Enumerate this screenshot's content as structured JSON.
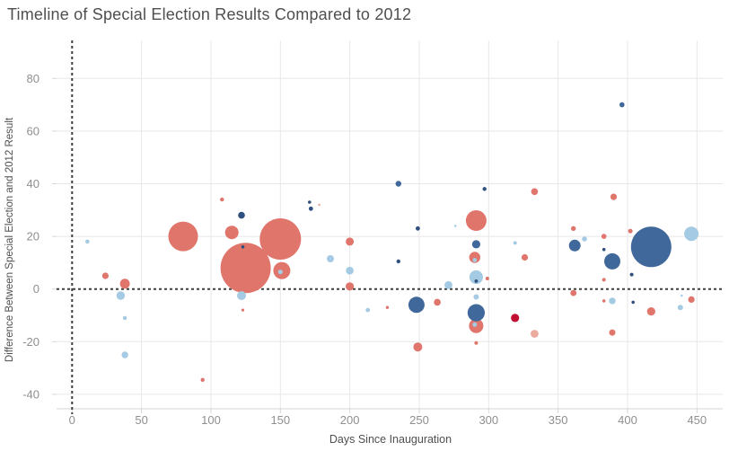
{
  "chart_data": {
    "type": "scatter",
    "title": "Timeline of Special Election Results Compared to 2012",
    "xlabel": "Days Since Inauguration",
    "ylabel": "Difference Between Special Election and 2012 Result",
    "xlim": [
      -11,
      467
    ],
    "ylim": [
      -46,
      94
    ],
    "x_ticks": [
      0,
      50,
      100,
      150,
      200,
      250,
      300,
      350,
      400,
      450
    ],
    "y_ticks": [
      -40,
      -20,
      0,
      20,
      40,
      60,
      80
    ],
    "grid": true,
    "legend_position": "none",
    "reference_lines": [
      {
        "axis": "x",
        "value": 0,
        "style": "dashed",
        "color": "#3f3f3f"
      },
      {
        "axis": "y",
        "value": 0,
        "style": "dashed",
        "color": "#3f3f3f"
      }
    ],
    "colors": {
      "red": "#e0756c",
      "pale_red": "#ecab9e",
      "crimson": "#c11031",
      "blue": "#40689b",
      "navy": "#30517f",
      "light_blue": "#a4cbe3"
    },
    "point_format": [
      "days_since_inauguration",
      "diff_vs_2012_pct",
      "radius_px",
      "color_key"
    ],
    "points": [
      [
        125,
        8,
        28,
        "red"
      ],
      [
        150,
        19,
        23,
        "red"
      ],
      [
        417,
        16,
        22.5,
        "blue"
      ],
      [
        80,
        20,
        16.5,
        "red"
      ],
      [
        291,
        26,
        11.5,
        "red"
      ],
      [
        151,
        7,
        9.5,
        "red"
      ],
      [
        291,
        -14,
        8,
        "red"
      ],
      [
        291,
        -9,
        9.6,
        "blue"
      ],
      [
        248,
        -6,
        9,
        "blue"
      ],
      [
        389,
        10.5,
        9,
        "blue"
      ],
      [
        446,
        21,
        8,
        "light_blue"
      ],
      [
        291,
        4.5,
        7.6,
        "light_blue"
      ],
      [
        115,
        21.5,
        7.5,
        "red"
      ],
      [
        362,
        16.5,
        6.5,
        "blue"
      ],
      [
        290,
        12,
        6.2,
        "red"
      ],
      [
        38,
        2,
        5.5,
        "red"
      ],
      [
        122,
        -2.5,
        5,
        "light_blue"
      ],
      [
        249,
        -22,
        5,
        "red"
      ],
      [
        35,
        -2.5,
        4.7,
        "light_blue"
      ],
      [
        291,
        17,
        4.6,
        "blue"
      ],
      [
        319,
        -11,
        4.6,
        "crimson"
      ],
      [
        417,
        -8.5,
        4.6,
        "red"
      ],
      [
        200,
        1,
        4.6,
        "red"
      ],
      [
        200,
        18,
        4.5,
        "red"
      ],
      [
        271,
        1.5,
        4.4,
        "light_blue"
      ],
      [
        333,
        -17,
        4.4,
        "pale_red"
      ],
      [
        200,
        7,
        4.3,
        "light_blue"
      ],
      [
        186,
        11.5,
        4,
        "light_blue"
      ],
      [
        122,
        28,
        3.8,
        "navy"
      ],
      [
        263,
        -5,
        3.8,
        "red"
      ],
      [
        333,
        37,
        3.8,
        "red"
      ],
      [
        38,
        -25,
        3.7,
        "light_blue"
      ],
      [
        389,
        -4.5,
        3.7,
        "light_blue"
      ],
      [
        24,
        5,
        3.6,
        "red"
      ],
      [
        326,
        12,
        3.6,
        "red"
      ],
      [
        390,
        35,
        3.6,
        "red"
      ],
      [
        446,
        -4,
        3.6,
        "red"
      ],
      [
        389,
        -16.5,
        3.5,
        "red"
      ],
      [
        361,
        -1.5,
        3.4,
        "red"
      ],
      [
        235,
        40,
        3.2,
        "blue"
      ],
      [
        291,
        -3,
        3,
        "light_blue"
      ],
      [
        438,
        -7,
        3,
        "light_blue"
      ],
      [
        369,
        19,
        2.8,
        "light_blue"
      ],
      [
        383,
        20,
        2.8,
        "red"
      ],
      [
        396,
        70,
        2.8,
        "blue"
      ],
      [
        361,
        23,
        2.7,
        "red"
      ],
      [
        150,
        6.5,
        2.6,
        "light_blue"
      ],
      [
        290,
        -13.5,
        2.5,
        "light_blue"
      ],
      [
        402,
        22,
        2.5,
        "red"
      ],
      [
        172,
        30.5,
        2.4,
        "navy"
      ],
      [
        213,
        -8,
        2.4,
        "light_blue"
      ],
      [
        249,
        23,
        2.4,
        "navy"
      ],
      [
        290,
        11,
        2.4,
        "light_blue"
      ],
      [
        11,
        18,
        2.3,
        "light_blue"
      ],
      [
        235,
        10.5,
        2.2,
        "navy"
      ],
      [
        38,
        -11,
        2.2,
        "light_blue"
      ],
      [
        94,
        -34.5,
        2.2,
        "red"
      ],
      [
        108,
        34,
        2.2,
        "red"
      ],
      [
        297,
        38,
        2.2,
        "navy"
      ],
      [
        299,
        4,
        2,
        "red"
      ],
      [
        291,
        -20.5,
        2,
        "red"
      ],
      [
        319,
        17.5,
        2,
        "light_blue"
      ],
      [
        383,
        3.5,
        2,
        "red"
      ],
      [
        403,
        5.5,
        2,
        "navy"
      ],
      [
        291,
        3,
        1.9,
        "navy"
      ],
      [
        123,
        16,
        1.8,
        "navy"
      ],
      [
        171,
        33,
        1.8,
        "navy"
      ],
      [
        383,
        15,
        1.8,
        "navy"
      ],
      [
        404,
        -5,
        1.8,
        "navy"
      ],
      [
        383,
        -4.5,
        1.8,
        "red"
      ],
      [
        227,
        -7,
        1.7,
        "red"
      ],
      [
        123,
        -8,
        1.6,
        "red"
      ],
      [
        178,
        32,
        1.3,
        "pale_red"
      ],
      [
        276,
        24,
        1.3,
        "light_blue"
      ],
      [
        439,
        -2.5,
        1.3,
        "light_blue"
      ]
    ],
    "style": {
      "grid_color": "#e8e8e8",
      "domain_color": "#d6d6d6",
      "tick_label_color": "#8f8f8f",
      "axis_title_color": "#4f4f4f",
      "title_color": "#4f4f4f",
      "background": "#ffffff"
    }
  }
}
